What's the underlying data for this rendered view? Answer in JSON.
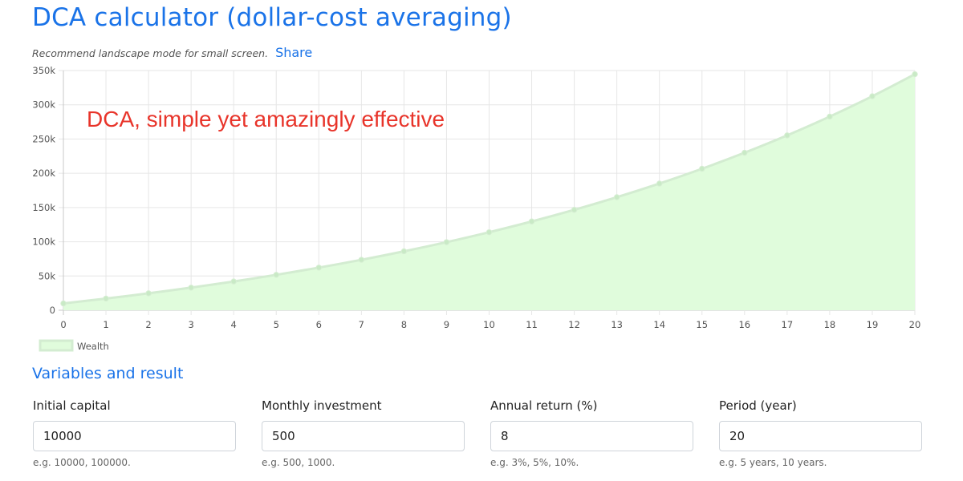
{
  "header": {
    "title": "DCA calculator (dollar-cost averaging)",
    "subtitle": "Recommend landscape mode for small screen.",
    "share_label": "Share"
  },
  "chart_data": {
    "type": "area",
    "annotation": "DCA, simple yet amazingly effective",
    "x": [
      0,
      1,
      2,
      3,
      4,
      5,
      6,
      7,
      8,
      9,
      10,
      11,
      12,
      13,
      14,
      15,
      16,
      17,
      18,
      19,
      20
    ],
    "series": [
      {
        "name": "Wealth",
        "values": [
          10000,
          17073,
          24734,
          33030,
          42015,
          51745,
          62283,
          73696,
          86057,
          99443,
          113941,
          129642,
          146646,
          165062,
          185006,
          206606,
          229998,
          255332,
          282768,
          312482,
          344662
        ]
      }
    ],
    "x_tick_labels": [
      "0",
      "1",
      "2",
      "3",
      "4",
      "5",
      "6",
      "7",
      "8",
      "9",
      "10",
      "11",
      "12",
      "13",
      "14",
      "15",
      "16",
      "17",
      "18",
      "19",
      "20"
    ],
    "y_tick_labels": [
      "0",
      "50k",
      "100k",
      "150k",
      "200k",
      "250k",
      "300k",
      "350k"
    ],
    "ylim": [
      0,
      350000
    ],
    "grid": true,
    "legend_position": "bottom-left",
    "colors": {
      "line": "#d3ecd1",
      "fill": "#e0fcdc",
      "points": "#c9eac6",
      "annotation": "#e8342a",
      "grid": "#e6e6e6",
      "tick_text": "#555555"
    }
  },
  "variables": {
    "title": "Variables and result",
    "fields": [
      {
        "label": "Initial capital",
        "value": "10000",
        "help": "e.g. 10000, 100000."
      },
      {
        "label": "Monthly investment",
        "value": "500",
        "help": "e.g. 500, 1000."
      },
      {
        "label": "Annual return (%)",
        "value": "8",
        "help": "e.g. 3%, 5%, 10%."
      },
      {
        "label": "Period (year)",
        "value": "20",
        "help": "e.g. 5 years, 10 years."
      }
    ]
  }
}
